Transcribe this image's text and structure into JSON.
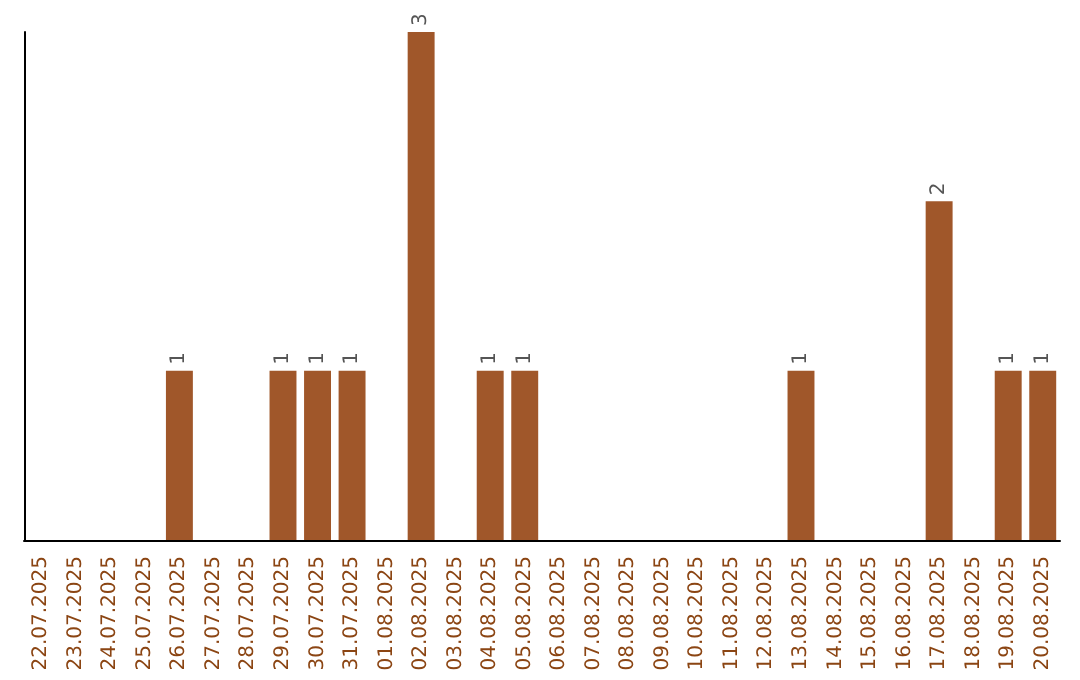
{
  "chart_data": {
    "type": "bar",
    "categories": [
      "22.07.2025",
      "23.07.2025",
      "24.07.2025",
      "25.07.2025",
      "26.07.2025",
      "27.07.2025",
      "28.07.2025",
      "29.07.2025",
      "30.07.2025",
      "31.07.2025",
      "01.08.2025",
      "02.08.2025",
      "03.08.2025",
      "04.08.2025",
      "05.08.2025",
      "06.08.2025",
      "07.08.2025",
      "08.08.2025",
      "09.08.2025",
      "10.08.2025",
      "11.08.2025",
      "12.08.2025",
      "13.08.2025",
      "14.08.2025",
      "15.08.2025",
      "16.08.2025",
      "17.08.2025",
      "18.08.2025",
      "19.08.2025",
      "20.08.2025"
    ],
    "values": [
      0,
      0,
      0,
      0,
      1,
      0,
      0,
      1,
      1,
      1,
      0,
      3,
      0,
      1,
      1,
      0,
      0,
      0,
      0,
      0,
      0,
      0,
      1,
      0,
      0,
      0,
      2,
      0,
      1,
      1
    ],
    "value_labels": [
      null,
      null,
      null,
      null,
      "1",
      null,
      null,
      "1",
      "1",
      "1",
      null,
      "3",
      null,
      "1",
      "1",
      null,
      null,
      null,
      null,
      null,
      null,
      null,
      "1",
      null,
      null,
      null,
      "2",
      null,
      "1",
      "1"
    ],
    "color": "#a0572a",
    "tick_labels": "x"
  }
}
